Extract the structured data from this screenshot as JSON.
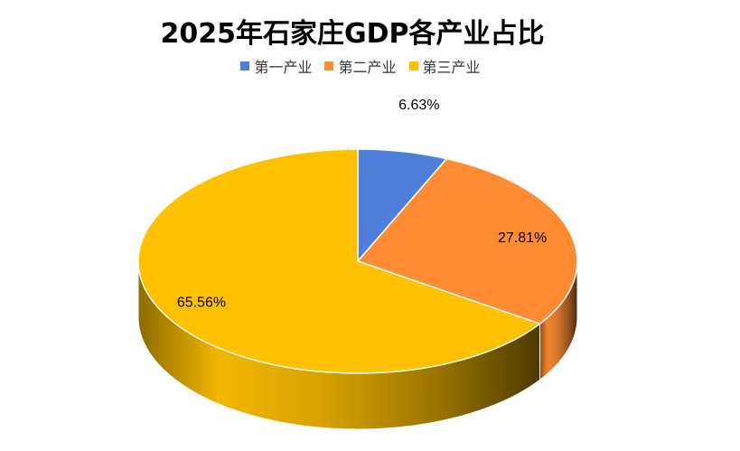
{
  "chart_data": {
    "type": "pie",
    "title": "2025年石家庄GDP各产业占比",
    "legend_position": "top",
    "three_d": true,
    "categories": [
      "第一产业",
      "第二产业",
      "第三产业"
    ],
    "values": [
      6.63,
      27.81,
      65.56
    ],
    "labels": [
      "6.63%",
      "27.81%",
      "65.56%"
    ],
    "colors": [
      "#4E7FDB",
      "#FF8C33",
      "#FFC000"
    ]
  }
}
